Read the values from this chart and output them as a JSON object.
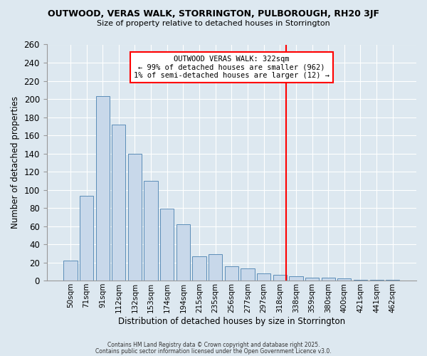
{
  "title": "OUTWOOD, VERAS WALK, STORRINGTON, PULBOROUGH, RH20 3JF",
  "subtitle": "Size of property relative to detached houses in Storrington",
  "xlabel": "Distribution of detached houses by size in Storrington",
  "ylabel": "Number of detached properties",
  "categories": [
    "50sqm",
    "71sqm",
    "91sqm",
    "112sqm",
    "132sqm",
    "153sqm",
    "174sqm",
    "194sqm",
    "215sqm",
    "235sqm",
    "256sqm",
    "277sqm",
    "297sqm",
    "318sqm",
    "338sqm",
    "359sqm",
    "380sqm",
    "400sqm",
    "421sqm",
    "441sqm",
    "462sqm"
  ],
  "values": [
    22,
    93,
    203,
    172,
    140,
    110,
    79,
    62,
    27,
    29,
    16,
    13,
    8,
    6,
    5,
    3,
    3,
    2,
    1,
    1,
    1
  ],
  "bar_color": "#c8d8ea",
  "bar_edge_color": "#5b8db8",
  "background_color": "#dde8f0",
  "grid_color": "#ffffff",
  "vline_color": "red",
  "annotation_title": "OUTWOOD VERAS WALK: 322sqm",
  "annotation_line1": "← 99% of detached houses are smaller (962)",
  "annotation_line2": "1% of semi-detached houses are larger (12) →",
  "annotation_box_color": "white",
  "annotation_border_color": "red",
  "footer1": "Contains HM Land Registry data © Crown copyright and database right 2025.",
  "footer2": "Contains public sector information licensed under the Open Government Licence v3.0.",
  "ylim": [
    0,
    260
  ],
  "yticks": [
    0,
    20,
    40,
    60,
    80,
    100,
    120,
    140,
    160,
    180,
    200,
    220,
    240,
    260
  ]
}
